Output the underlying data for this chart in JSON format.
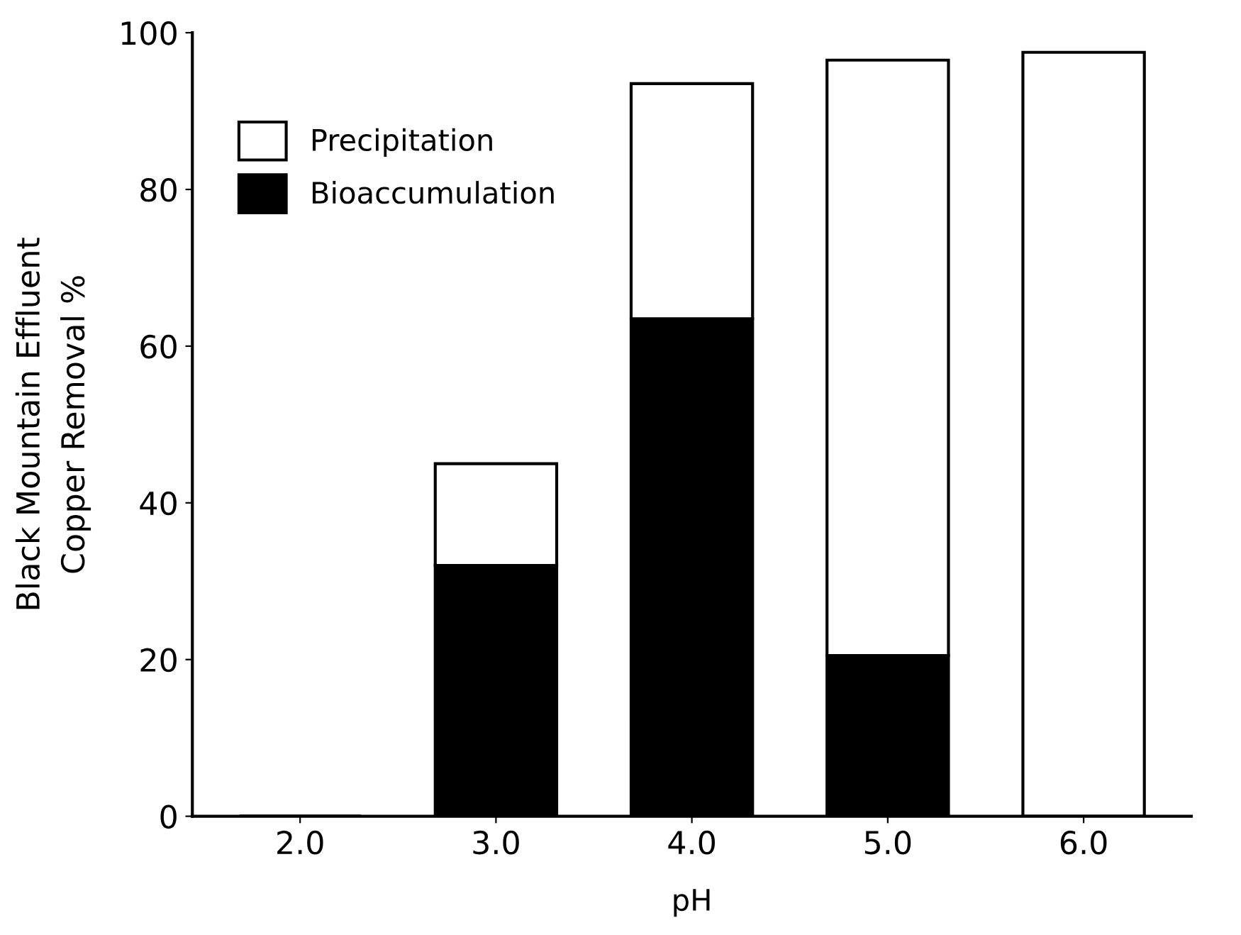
{
  "chart_data": {
    "type": "bar",
    "stacked": true,
    "xlabel": "pH",
    "ylabel": "Black Mountain Effluent\nCopper Removal %",
    "categories": [
      "2.0",
      "3.0",
      "4.0",
      "5.0",
      "6.0"
    ],
    "series": [
      {
        "name": "Bioaccumulation",
        "color": "#000000",
        "values": [
          0,
          32,
          63.5,
          20.5,
          0
        ]
      },
      {
        "name": "Precipitation",
        "color": "#ffffff",
        "values": [
          0,
          13,
          30,
          76,
          97.5
        ]
      }
    ],
    "ylim": [
      0,
      100
    ],
    "yticks": [
      0,
      20,
      40,
      60,
      80,
      100
    ],
    "grid": false,
    "legend": "top left"
  }
}
